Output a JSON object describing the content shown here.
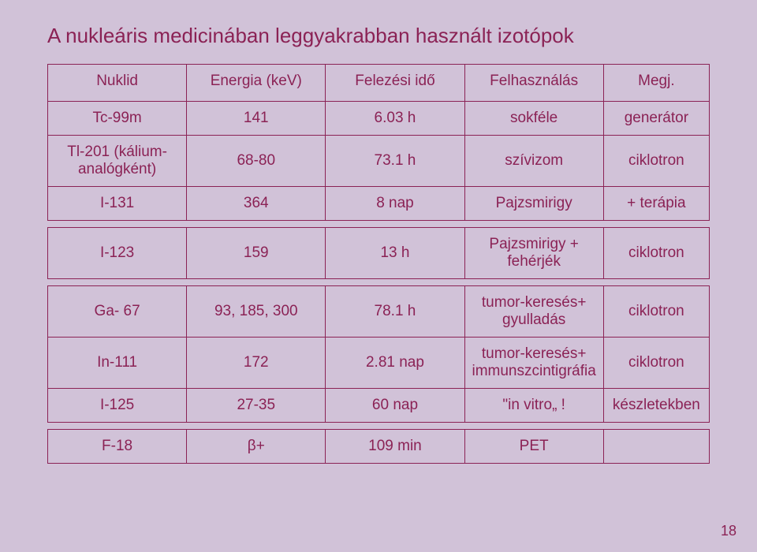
{
  "slide": {
    "title": "A nukleáris medicinában leggyakrabban használt izotópok",
    "page_number": "18",
    "background_color": "#d1c2d8",
    "text_color": "#8b2255",
    "border_color": "#8b2255",
    "title_fontsize": 26,
    "cell_fontsize": 19
  },
  "table": {
    "headers": {
      "nuklid": "Nuklid",
      "energia": "Energia (keV)",
      "felezesi": "Felezési idő",
      "felhasz": "Felhasználás",
      "megj": "Megj."
    },
    "group1": [
      {
        "nuklid": "Tc-99m",
        "energia": "141",
        "felezesi": "6.03 h",
        "felhasz": "sokféle",
        "megj": "generátor"
      },
      {
        "nuklid": "Tl-201 (kálium-analógként)",
        "energia": "68-80",
        "felezesi": "73.1 h",
        "felhasz": "szívizom",
        "megj": "ciklotron"
      },
      {
        "nuklid": "I-131",
        "energia": "364",
        "felezesi": "8 nap",
        "felhasz": "Pajzsmirigy",
        "megj": "+ terápia"
      }
    ],
    "group2": [
      {
        "nuklid": "I-123",
        "energia": "159",
        "felezesi": "13 h",
        "felhasz": "Pajzsmirigy + fehérjék",
        "megj": "ciklotron"
      }
    ],
    "group3": [
      {
        "nuklid": "Ga- 67",
        "energia": "93, 185, 300",
        "felezesi": "78.1 h",
        "felhasz": "tumor-keresés+ gyulladás",
        "megj": "ciklotron"
      },
      {
        "nuklid": "In-111",
        "energia": "172",
        "felezesi": "2.81 nap",
        "felhasz": "tumor-keresés+ immunszcintigráfia",
        "megj": "ciklotron"
      },
      {
        "nuklid": "I-125",
        "energia": "27-35",
        "felezesi": "60 nap",
        "felhasz": "\"in vitro„ !",
        "megj": "készletekben"
      }
    ],
    "group4": [
      {
        "nuklid": "F-18",
        "energia": "β+",
        "felezesi": "109 min",
        "felhasz": "PET",
        "megj": ""
      }
    ]
  }
}
